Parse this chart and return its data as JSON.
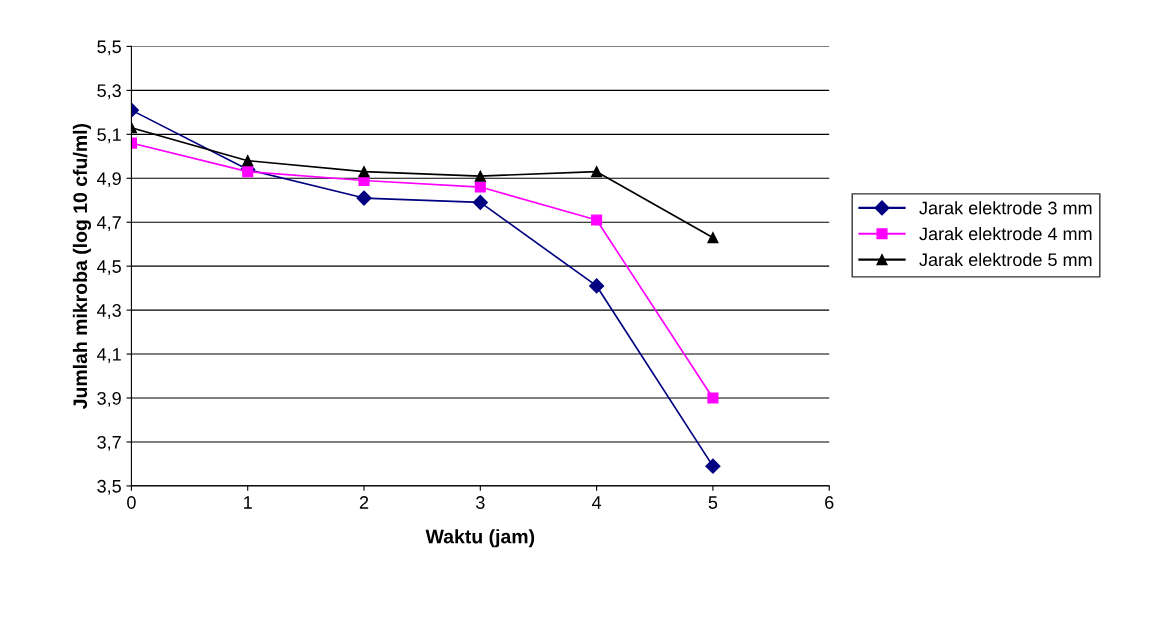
{
  "chart_data": {
    "type": "line",
    "xlabel": "Waktu (jam)",
    "ylabel": "Jumlah mikroba (log 10 cfu/ml)",
    "x": [
      0,
      1,
      2,
      3,
      4,
      5
    ],
    "series": [
      {
        "name": "Jarak elektrode 3 mm",
        "color": "#000080",
        "marker": "diamond",
        "values": [
          5.21,
          4.94,
          4.81,
          4.79,
          4.41,
          3.59
        ]
      },
      {
        "name": "Jarak elektrode 4 mm",
        "color": "#ff00ff",
        "marker": "square",
        "values": [
          5.06,
          4.93,
          4.89,
          4.86,
          4.71,
          3.9
        ]
      },
      {
        "name": "Jarak elektrode 5 mm",
        "color": "#000000",
        "marker": "triangle",
        "values": [
          5.13,
          4.98,
          4.93,
          4.91,
          4.93,
          4.63
        ]
      }
    ],
    "xlim": [
      0,
      6
    ],
    "xticks": [
      0,
      1,
      2,
      3,
      4,
      5,
      6
    ],
    "ylim": [
      3.5,
      5.5
    ],
    "yticks": [
      {
        "value": 3.5,
        "label": "3,5"
      },
      {
        "value": 3.7,
        "label": "3,7"
      },
      {
        "value": 3.9,
        "label": "3,9"
      },
      {
        "value": 4.1,
        "label": "4,1"
      },
      {
        "value": 4.3,
        "label": "4,3"
      },
      {
        "value": 4.5,
        "label": "4,5"
      },
      {
        "value": 4.7,
        "label": "4,7"
      },
      {
        "value": 4.9,
        "label": "4,9"
      },
      {
        "value": 5.1,
        "label": "5,1"
      },
      {
        "value": 5.3,
        "label": "5,3"
      },
      {
        "value": 5.5,
        "label": "5,5"
      }
    ],
    "grid": "y",
    "legend": "right"
  }
}
